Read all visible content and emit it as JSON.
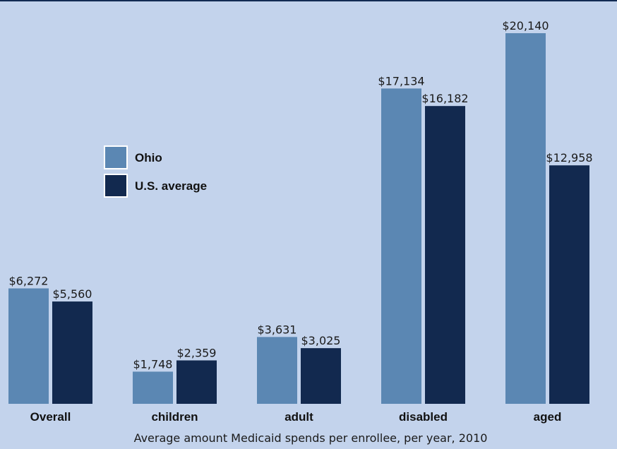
{
  "chart_data": {
    "type": "bar",
    "categories": [
      "Overall",
      "children",
      "adult",
      "disabled",
      "aged"
    ],
    "series": [
      {
        "name": "Ohio",
        "values": [
          6272,
          1748,
          3631,
          17134,
          20140
        ],
        "labels": [
          "$6,272",
          "$1,748",
          "$3,631",
          "$17,134",
          "$20,140"
        ],
        "color": "#5b87b3"
      },
      {
        "name": "U.S. average",
        "values": [
          5560,
          2359,
          3025,
          16182,
          12958
        ],
        "labels": [
          "$5,560",
          "$2,359",
          "$3,025",
          "$16,182",
          "$12,958"
        ],
        "color": "#12294f"
      }
    ],
    "caption": "Average amount Medicaid spends per enrollee, per year, 2010",
    "ylim": [
      0,
      20140
    ],
    "grid": false,
    "legend_position": "center-left"
  },
  "colors": {
    "background": "#c3d3ec",
    "top_border": "#112a52",
    "legend_box_border": "#ffffff"
  }
}
